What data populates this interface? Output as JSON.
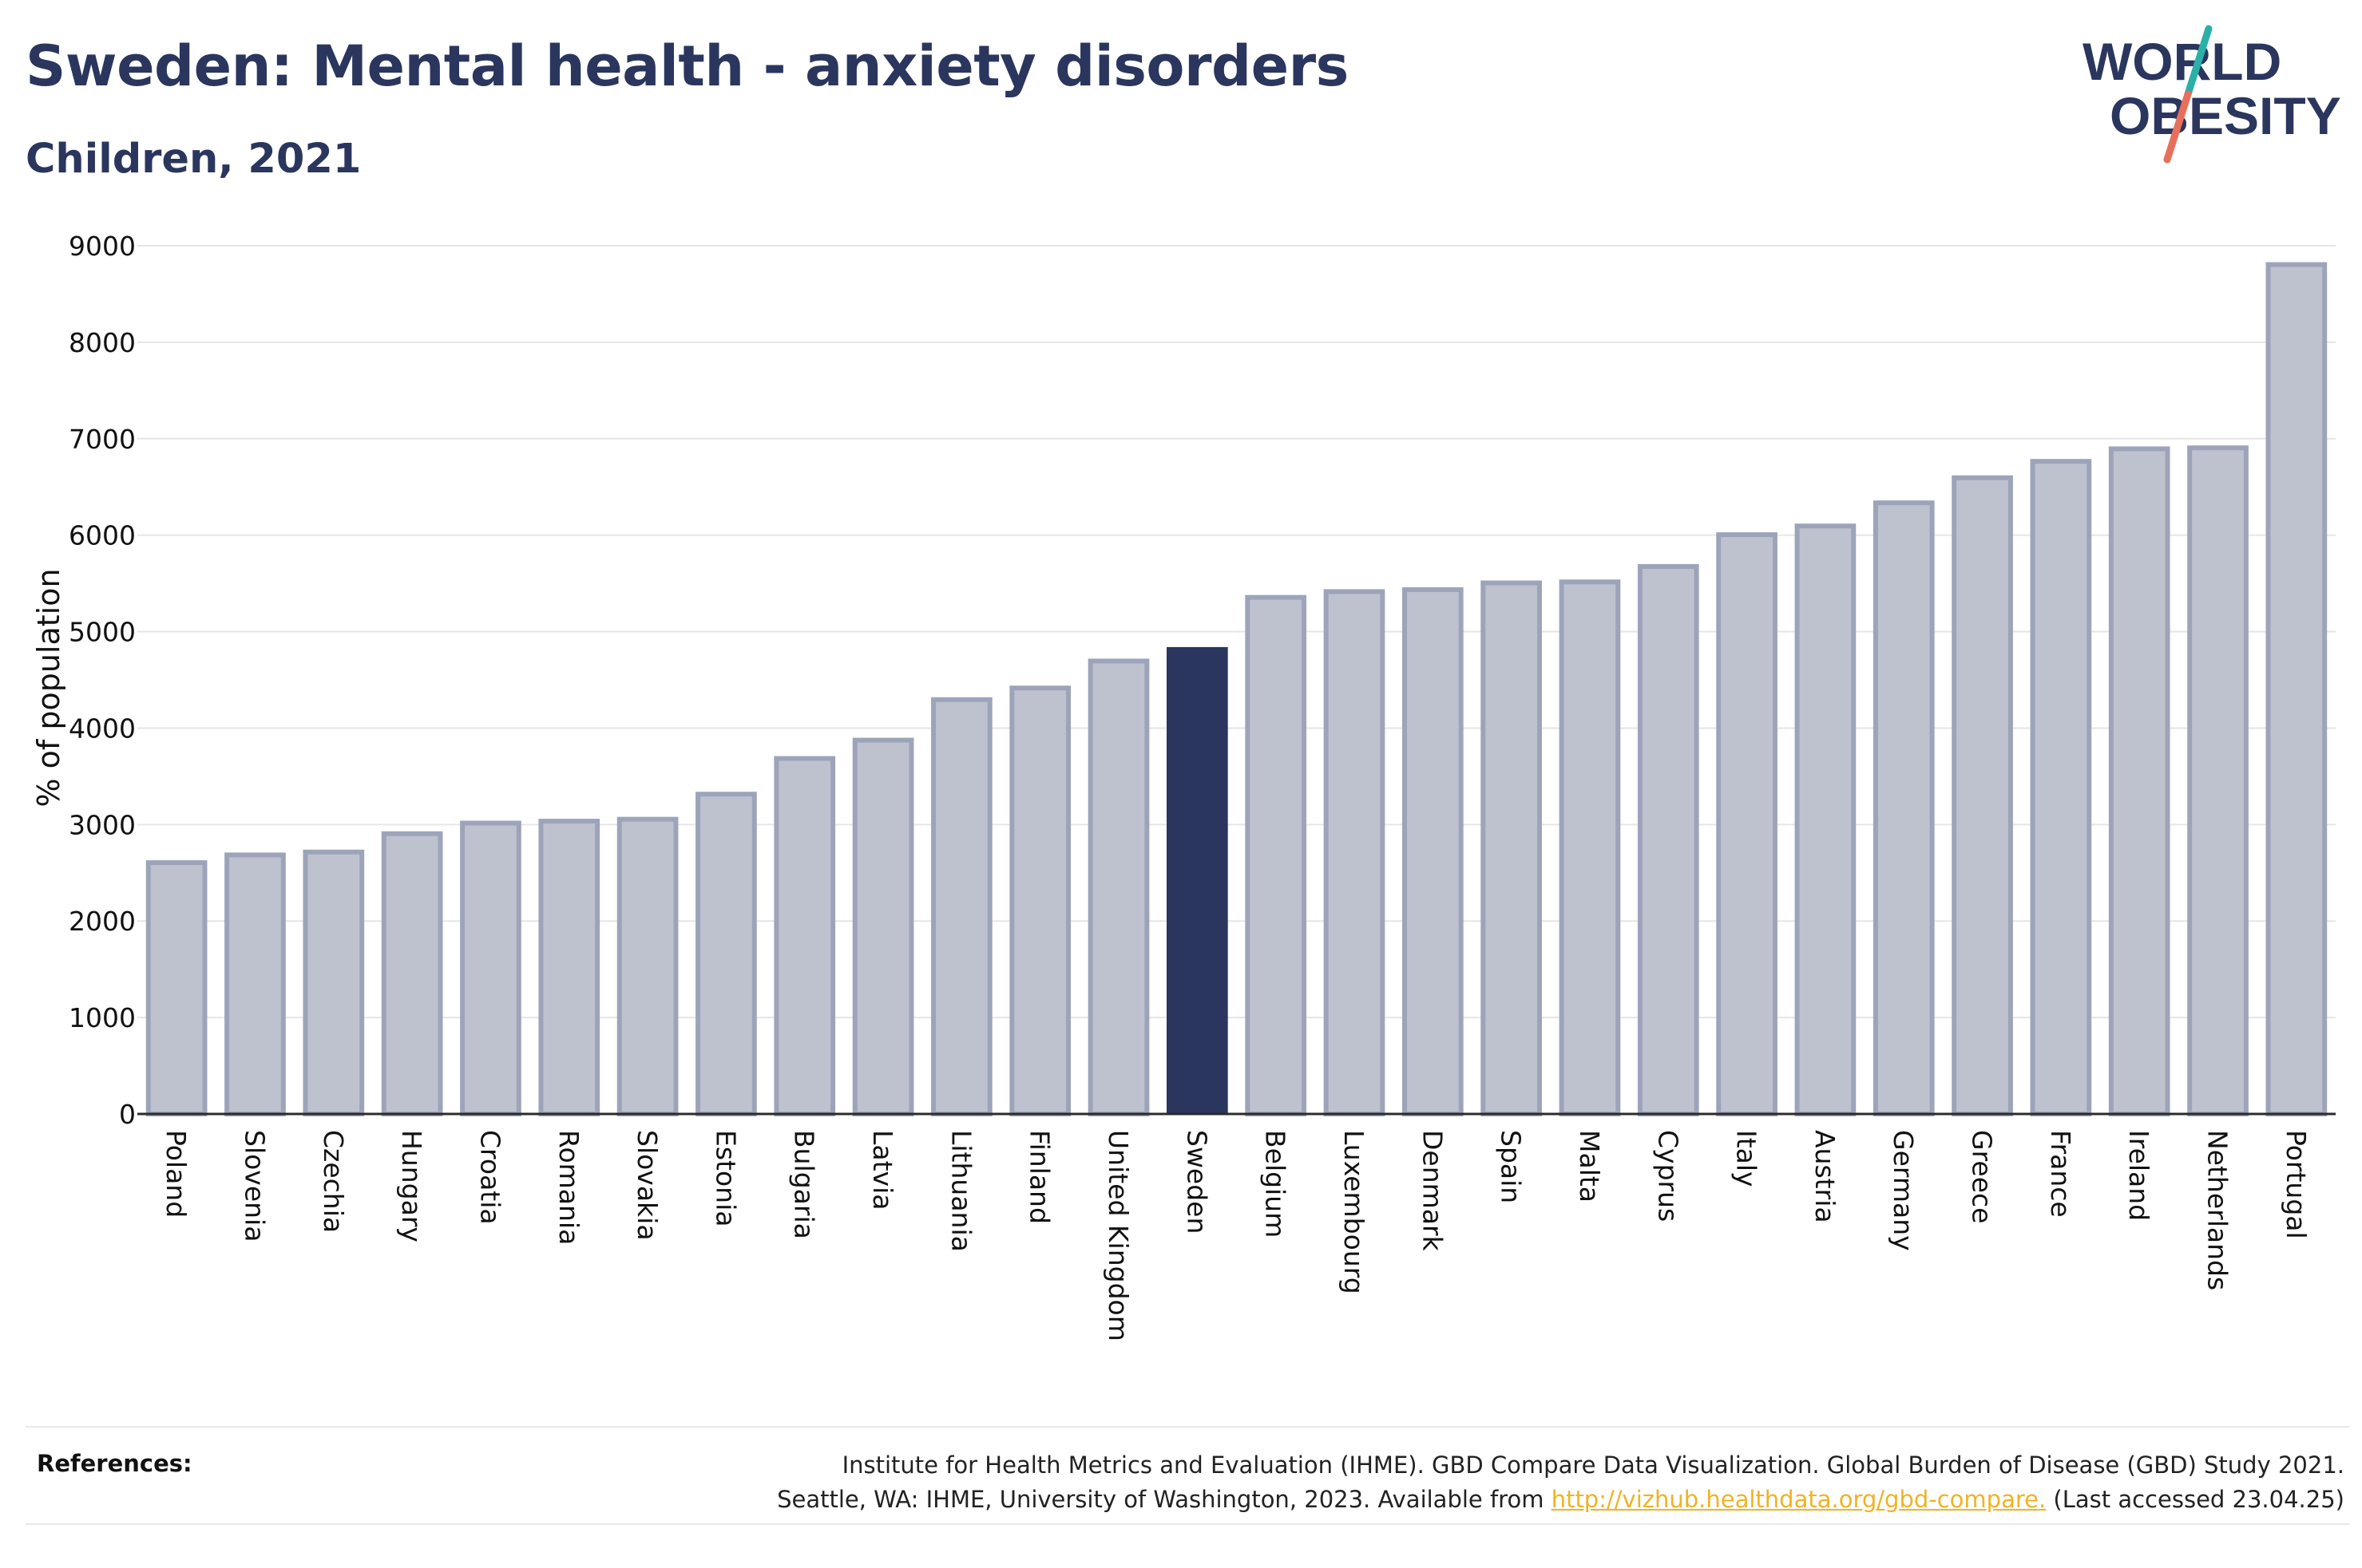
{
  "title": "Sweden: Mental health - anxiety disorders",
  "subtitle": "Children, 2021",
  "logo": {
    "line1": "WORLD",
    "line2": "OBESITY",
    "text_color": "#2b365e",
    "slash_colors": [
      "#2ab0a8",
      "#e8705a"
    ]
  },
  "colors": {
    "highlight_bar": "#2b365e",
    "other_bar_fill": "#bec2cf",
    "other_bar_stroke": "#9da4ba",
    "gridline": "#e6e6e6",
    "axis": "#2b2b2b",
    "link": "#f0b323"
  },
  "chart_data": {
    "type": "bar",
    "title": "Sweden: Mental health - anxiety disorders",
    "subtitle": "Children, 2021",
    "xlabel": "",
    "ylabel": "% of population",
    "ylim": [
      0,
      9000
    ],
    "yticks": [
      0,
      1000,
      2000,
      3000,
      4000,
      5000,
      6000,
      7000,
      8000,
      9000
    ],
    "grid": true,
    "highlight": "Sweden",
    "categories": [
      "Poland",
      "Slovenia",
      "Czechia",
      "Hungary",
      "Croatia",
      "Romania",
      "Slovakia",
      "Estonia",
      "Bulgaria",
      "Latvia",
      "Lithuania",
      "Finland",
      "United Kingdom",
      "Sweden",
      "Belgium",
      "Luxembourg",
      "Denmark",
      "Spain",
      "Malta",
      "Cyprus",
      "Italy",
      "Austria",
      "Germany",
      "Greece",
      "France",
      "Ireland",
      "Netherlands",
      "Portugal"
    ],
    "values": [
      2630,
      2710,
      2740,
      2930,
      3040,
      3060,
      3080,
      3340,
      3710,
      3900,
      4320,
      4440,
      4720,
      4840,
      5380,
      5440,
      5460,
      5530,
      5540,
      5700,
      6030,
      6120,
      6360,
      6620,
      6790,
      6920,
      6930,
      8830
    ]
  },
  "references": {
    "label": "References:",
    "line1": "Institute for Health Metrics and Evaluation (IHME). GBD Compare Data Visualization. Global Burden of Disease (GBD) Study 2021.",
    "line2_prefix": "Seattle, WA: IHME, University of Washington, 2023. Available from ",
    "link": "http://vizhub.healthdata.org/gbd-compare.",
    "line2_suffix": " (Last accessed 23.04.25)"
  }
}
